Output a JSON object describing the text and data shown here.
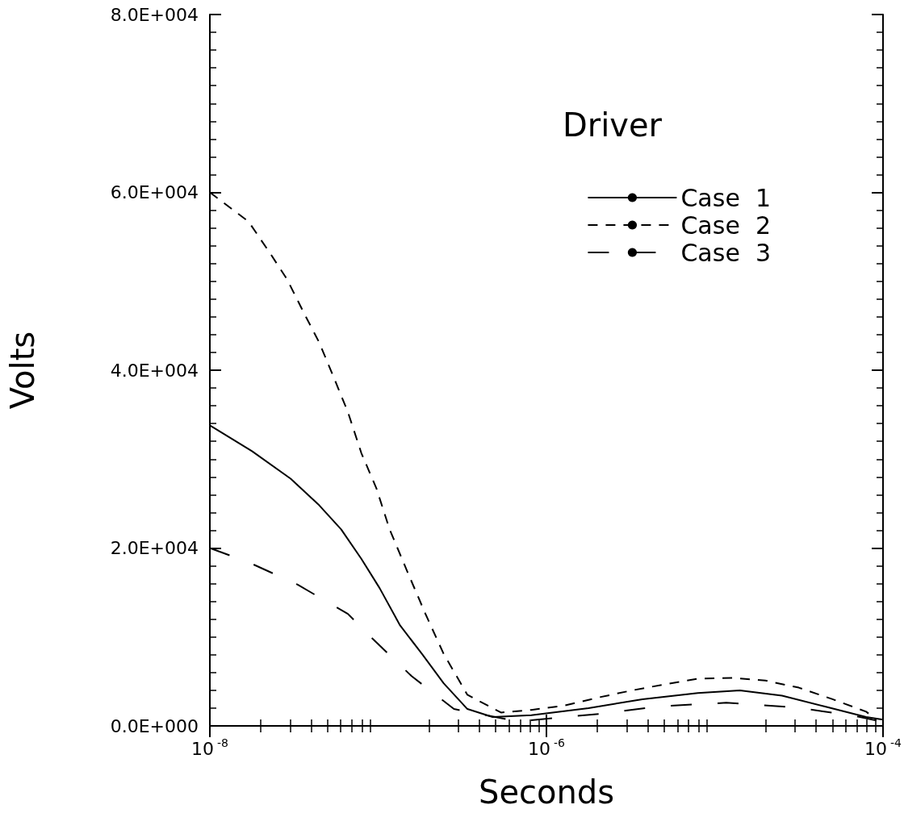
{
  "chart_data": {
    "type": "line",
    "xlabel": "Seconds",
    "ylabel": "Volts",
    "legend_title": "Driver",
    "legend": "top right",
    "log": "x",
    "grid": false,
    "marker": "none",
    "xlim": [
      1e-08,
      0.0001
    ],
    "xticks": [
      {
        "value": 1e-08,
        "label": "10$^{-8}$"
      },
      {
        "value": 1e-06,
        "label": "10$^{-6}$"
      },
      {
        "value": 0.0001,
        "label": "10$^{-4}$"
      }
    ],
    "ylim": [
      0,
      80000
    ],
    "yticks": [
      {
        "value": 0,
        "label": "0.0E+000"
      },
      {
        "value": 20000,
        "label": "2.0E+004"
      },
      {
        "value": 40000,
        "label": "4.0E+004"
      },
      {
        "value": 60000,
        "label": "6.0E+004"
      },
      {
        "value": 80000,
        "label": "8.0E+004"
      }
    ],
    "series": [
      {
        "name": "Case  1",
        "color": "#000000",
        "line_style": "solid",
        "x": [
          1e-08,
          1.78e-08,
          3.02e-08,
          4.47e-08,
          6.03e-08,
          7.94e-08,
          1.02e-07,
          1.35e-07,
          1.82e-07,
          2.45e-07,
          3.39e-07,
          4.79e-07,
          8.13e-07,
          1.78e-06,
          3.72e-06,
          7.94e-06,
          1.41e-05,
          2.51e-05,
          4.47e-05,
          7.94e-05,
          0.0001
        ],
        "values": [
          33800,
          30900,
          27800,
          24800,
          22100,
          18800,
          15500,
          11300,
          8100,
          4800,
          1900,
          1000,
          1200,
          2000,
          3000,
          3700,
          4000,
          3400,
          2200,
          1000,
          700
        ]
      },
      {
        "name": "Case  2",
        "color": "#000000",
        "line_style": "dashed",
        "x": [
          1e-08,
          1.7e-08,
          2.29e-08,
          2.88e-08,
          3.63e-08,
          4.47e-08,
          5.5e-08,
          6.61e-08,
          7.94e-08,
          9.77e-08,
          1.17e-07,
          1.51e-07,
          1.91e-07,
          2.45e-07,
          3.39e-07,
          5.37e-07,
          8.13e-07,
          1.29e-06,
          2.04e-06,
          3.24e-06,
          5.13e-06,
          7.94e-06,
          1.29e-05,
          2e-05,
          3.16e-05,
          5.01e-05,
          7.94e-05,
          9.12e-05
        ],
        "values": [
          60000,
          56700,
          53100,
          50200,
          46400,
          43100,
          39000,
          35300,
          30700,
          26700,
          22100,
          17100,
          12600,
          8100,
          3500,
          1500,
          1800,
          2300,
          3200,
          4000,
          4700,
          5300,
          5400,
          5100,
          4300,
          3000,
          1600,
          700
        ]
      },
      {
        "name": "Case  3",
        "color": "#000000",
        "line_style": "dashed",
        "x": [
          1e-08,
          1.7e-08,
          3.31e-08,
          6.61e-08,
          8.71e-08,
          1.58e-07,
          2.82e-07,
          6.76e-07,
          2.19e-06,
          4.68e-06,
          1.17e-05,
          2.95e-05,
          6.46e-05,
          9.12e-05
        ],
        "values": [
          20000,
          18400,
          15900,
          12600,
          10300,
          5600,
          1900,
          500,
          1400,
          2200,
          2600,
          2100,
          1200,
          600
        ]
      }
    ]
  }
}
